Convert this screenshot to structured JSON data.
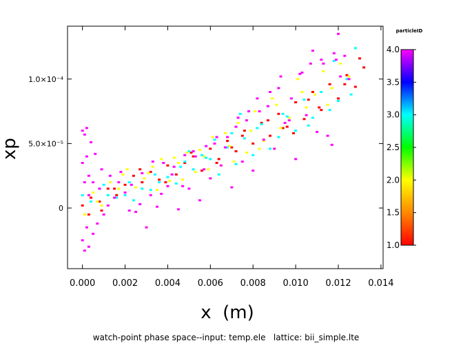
{
  "chart_data": {
    "type": "scatter",
    "xlabel": "x  (m)",
    "ylabel": "xp",
    "caption": "watch-point phase space--input: temp.ele   lattice: bii_simple.lte",
    "colorbar": {
      "title": "particleID",
      "range": [
        1.0,
        4.0
      ],
      "tick_labels": [
        "4.0",
        "3.5",
        "3.0",
        "2.5",
        "2.0",
        "1.5",
        "1.0"
      ],
      "tick_values": [
        4.0,
        3.5,
        3.0,
        2.5,
        2.0,
        1.5,
        1.0
      ],
      "colors": [
        "#ff0000",
        "#ff8800",
        "#ffff00",
        "#00ff00",
        "#00ffff",
        "#0000ff",
        "#ff00ff"
      ]
    },
    "xlim": [
      -0.0007,
      0.0141
    ],
    "ylim": [
      -4.7e-05,
      0.000141
    ],
    "x_ticks": [
      0,
      0.002,
      0.004,
      0.006,
      0.008,
      0.01,
      0.012,
      0.014
    ],
    "x_tick_labels": [
      "0.000",
      "0.002",
      "0.004",
      "0.006",
      "0.008",
      "0.010",
      "0.012",
      "0.014"
    ],
    "y_ticks": [
      0,
      5e-05,
      0.0001
    ],
    "y_tick_labels": [
      "0",
      "5.0×10⁻⁵",
      "1.0×10⁻⁴"
    ],
    "grid": false,
    "series": [
      {
        "id": 1,
        "color": "#ff0000",
        "x": [
          0.0,
          0.0004,
          0.0008,
          0.0012,
          0.0016,
          0.002,
          0.0024,
          0.0028,
          0.0032,
          0.0036,
          0.004,
          0.0044,
          0.0048,
          0.0052,
          0.0056,
          0.006,
          0.0064,
          0.0068,
          0.0072,
          0.0076,
          0.008,
          0.0084,
          0.0088,
          0.0092,
          0.0096,
          0.01,
          0.0104,
          0.0108,
          0.0112,
          0.0116,
          0.012,
          0.0124,
          0.0128,
          0.0132,
          0.0003,
          0.0009,
          0.0015,
          0.0027,
          0.0039,
          0.0051,
          0.0063,
          0.0075,
          0.0087,
          0.0099,
          0.0111,
          0.0123,
          0.013,
          0.0106,
          0.0094,
          0.007
        ],
        "y": [
          2e-06,
          8e-06,
          5e-06,
          1.5e-05,
          1e-05,
          1.8e-05,
          2.5e-05,
          2e-05,
          2.8e-05,
          2.2e-05,
          3.3e-05,
          2.6e-05,
          3.5e-05,
          4e-05,
          2.9e-05,
          4.6e-05,
          3.8e-05,
          5.2e-05,
          4.4e-05,
          6e-05,
          5e-05,
          6.6e-05,
          5.6e-05,
          7.3e-05,
          6.3e-05,
          8.2e-05,
          6.9e-05,
          9e-05,
          7.6e-05,
          9.6e-05,
          8.5e-05,
          0.000103,
          9.4e-05,
          0.000109,
          -5e-06,
          -2e-06,
          1.5e-05,
          3e-05,
          2e-05,
          4.3e-05,
          3.5e-05,
          5.6e-05,
          6.8e-05,
          5.8e-05,
          7.8e-05,
          9.6e-05,
          0.000116,
          8.4e-05,
          6.2e-05,
          4.7e-05
        ]
      },
      {
        "id": 2,
        "color": "#ffff00",
        "x": [
          0.0001,
          0.0005,
          0.0009,
          0.0013,
          0.0017,
          0.0021,
          0.0025,
          0.0029,
          0.0033,
          0.0037,
          0.0041,
          0.0045,
          0.0049,
          0.0053,
          0.0057,
          0.0061,
          0.0065,
          0.0069,
          0.0073,
          0.0077,
          0.0081,
          0.0085,
          0.0089,
          0.0093,
          0.0097,
          0.0101,
          0.0105,
          0.0109,
          0.0113,
          0.0117,
          0.0121,
          0.0007,
          0.0019,
          0.0031,
          0.0043,
          0.0055,
          0.0067,
          0.0079,
          0.0091,
          0.0103,
          0.0115,
          0.0125,
          0.0035,
          0.0047,
          0.0059,
          0.0071,
          0.0083
        ],
        "y": [
          -5e-06,
          1.2e-05,
          2e-06,
          2e-05,
          1.5e-05,
          3e-05,
          1.6e-05,
          2.3e-05,
          3.2e-05,
          3.8e-05,
          2.1e-05,
          3.5e-05,
          4.3e-05,
          2.8e-05,
          4e-05,
          5.5e-05,
          3.3e-05,
          4.8e-05,
          6.6e-05,
          4.3e-05,
          7.5e-05,
          5.2e-05,
          8.5e-05,
          6.2e-05,
          7e-05,
          0.0001,
          7.8e-05,
          8.8e-05,
          0.000106,
          9.3e-05,
          0.000112,
          5e-06,
          2.6e-05,
          2.7e-05,
          3.9e-05,
          4.5e-05,
          5.8e-05,
          6e-05,
          8e-05,
          9e-05,
          8e-05,
          0.000102,
          1.4e-05,
          2.2e-05,
          3e-05,
          3.6e-05,
          4.6e-05
        ]
      },
      {
        "id": 3,
        "color": "#00ffff",
        "x": [
          0.0,
          0.0004,
          0.0008,
          0.0012,
          0.0016,
          0.002,
          0.0024,
          0.0028,
          0.0032,
          0.0036,
          0.004,
          0.0044,
          0.0048,
          0.0052,
          0.0056,
          0.006,
          0.0064,
          0.0068,
          0.0072,
          0.0076,
          0.008,
          0.0084,
          0.0088,
          0.0092,
          0.0096,
          0.01,
          0.0104,
          0.0108,
          0.0112,
          0.0116,
          0.012,
          0.0124,
          0.0128,
          0.001,
          0.0022,
          0.0034,
          0.0046,
          0.0058,
          0.007,
          0.0082,
          0.0094,
          0.0106,
          0.0118,
          0.0126,
          0.0074,
          0.0062,
          0.005
        ],
        "y": [
          1e-05,
          5e-06,
          1.5e-05,
          1e-05,
          8e-06,
          1e-05,
          6e-06,
          1.5e-05,
          1.4e-05,
          2e-05,
          2.4e-05,
          1.9e-05,
          3.6e-05,
          3e-05,
          4.1e-05,
          3.8e-05,
          2.6e-05,
          4.7e-05,
          3.4e-05,
          5.4e-05,
          4.1e-05,
          6.5e-05,
          4.6e-05,
          5.5e-05,
          7.1e-05,
          6e-05,
          8.4e-05,
          7e-05,
          9e-05,
          7.6e-05,
          8.3e-05,
          0.0001,
          0.000124,
          1.8e-05,
          2e-05,
          2.6e-05,
          3.2e-05,
          3.9e-05,
          5.8e-05,
          6.2e-05,
          7.3e-05,
          6.4e-05,
          0.000114,
          8.8e-05,
          7.3e-05,
          5.3e-05,
          4.4e-05
        ]
      },
      {
        "id": 4,
        "color": "#ff00ff",
        "x": [
          0.0,
          0.0001,
          0.0002,
          0.0,
          0.0001,
          0.0003,
          0.0002,
          0.0,
          0.0001,
          0.0003,
          0.0005,
          0.0007,
          0.001,
          0.0015,
          0.002,
          0.0025,
          0.003,
          0.0035,
          0.004,
          0.0045,
          0.005,
          0.0055,
          0.006,
          0.0065,
          0.007,
          0.0075,
          0.008,
          0.0085,
          0.009,
          0.0095,
          0.01,
          0.0105,
          0.011,
          0.0115,
          0.012,
          0.0125,
          0.0004,
          0.0006,
          0.0009,
          0.0013,
          0.0018,
          0.0023,
          0.0028,
          0.0033,
          0.0038,
          0.0043,
          0.0048,
          0.0053,
          0.0058,
          0.0063,
          0.0068,
          0.0073,
          0.0078,
          0.0083,
          0.0088,
          0.0093,
          0.0098,
          0.0103,
          0.0108,
          0.0113,
          0.0118,
          0.0123,
          0.0002,
          0.0003,
          0.0005,
          0.0008,
          0.0012,
          0.0017,
          0.0022,
          0.0027,
          0.0032,
          0.0037,
          0.0042,
          0.0047,
          0.0052,
          0.0057,
          0.0062,
          0.0067,
          0.0072,
          0.0077,
          0.0082,
          0.0087,
          0.0092,
          0.0097,
          0.0102,
          0.0107,
          0.0112,
          0.0117,
          0.0121,
          0.0119
        ],
        "y": [
          6e-05,
          5.7e-05,
          6.2e-05,
          3.5e-05,
          2e-05,
          1e-05,
          -1.5e-05,
          -2.5e-05,
          -3.3e-05,
          -3e-05,
          -2e-05,
          -1.2e-05,
          -5e-06,
          8e-06,
          1.2e-05,
          -3e-06,
          -1.5e-05,
          1e-06,
          1.7e-05,
          -1e-06,
          1.5e-05,
          6e-06,
          2.3e-05,
          3.3e-05,
          1.6e-05,
          3.6e-05,
          2.9e-05,
          5.3e-05,
          4.6e-05,
          6.6e-05,
          3.8e-05,
          7.2e-05,
          5.9e-05,
          5.6e-05,
          0.000135,
          0.0001,
          5.1e-05,
          4.2e-05,
          3e-05,
          2.5e-05,
          2.8e-05,
          1.8e-05,
          2.7e-05,
          3.6e-05,
          3.5e-05,
          3.2e-05,
          4.1e-05,
          4e-05,
          4.8e-05,
          5.5e-05,
          5.5e-05,
          7e-05,
          7.5e-05,
          7.5e-05,
          9e-05,
          0.000102,
          8.5e-05,
          0.000105,
          0.000122,
          0.000112,
          0.00012,
          0.000118,
          4e-05,
          2.5e-05,
          2e-05,
          1.5e-05,
          2e-06,
          2e-05,
          -2e-06,
          3e-06,
          1e-05,
          1.1e-05,
          2.6e-05,
          1.7e-05,
          4.4e-05,
          3e-05,
          5e-05,
          4.7e-05,
          6.3e-05,
          6.8e-05,
          8.5e-05,
          7.9e-05,
          9.3e-05,
          6.8e-05,
          0.000104,
          0.000112,
          0.000115,
          4.9e-05,
          0.000102,
          0.000115
        ]
      }
    ]
  }
}
